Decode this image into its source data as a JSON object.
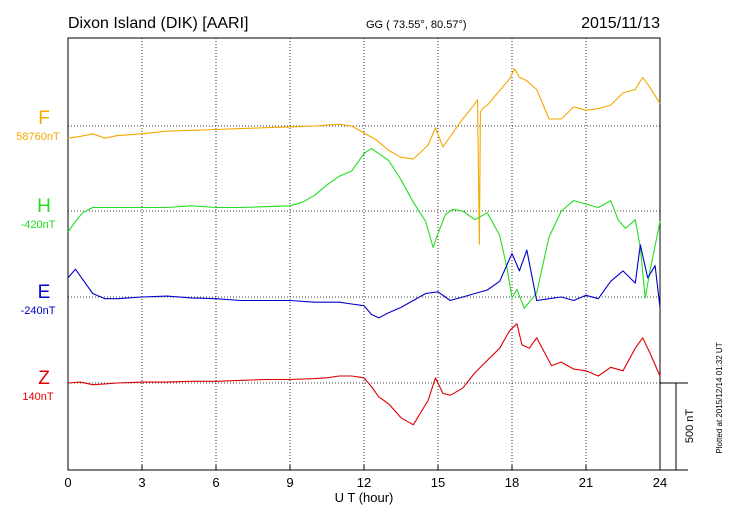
{
  "header": {
    "station": "Dixon Island (DIK)  [AARI]",
    "coords": "GG ( 73.55°,  80.57°)",
    "date": "2015/11/13"
  },
  "side_note": "Plotted at 2015/12/14 01:32 UT",
  "scale_label": "500 nT",
  "chart_data": {
    "type": "line",
    "xlabel": "U T (hour)",
    "xlim": [
      0,
      24
    ],
    "xticks": [
      "0",
      "3",
      "6",
      "9",
      "12",
      "15",
      "18",
      "21",
      "24"
    ],
    "scale_nT": 500,
    "series": [
      {
        "name": "F",
        "baseline_label": "58760nT",
        "color": "#f5a800",
        "baseline_nT": 58760,
        "x": [
          0,
          0.5,
          1,
          1.5,
          2,
          3,
          4,
          5,
          6,
          7,
          8,
          9,
          10,
          10.5,
          11,
          11.5,
          12,
          12.5,
          13,
          13.5,
          14,
          14.3,
          14.6,
          14.9,
          15.2,
          15.5,
          16,
          16.4,
          16.6,
          16.68,
          16.72,
          16.8,
          17,
          17.3,
          17.6,
          17.9,
          18.1,
          18.3,
          18.6,
          19,
          19.5,
          20,
          20.5,
          21,
          21.5,
          22,
          22.5,
          23,
          23.3,
          23.6,
          24
        ],
        "y": [
          -70,
          -60,
          -45,
          -70,
          -55,
          -45,
          -30,
          -25,
          -20,
          -15,
          -10,
          -5,
          0,
          5,
          10,
          0,
          -40,
          -80,
          -140,
          -180,
          -190,
          -150,
          -110,
          -10,
          -120,
          -60,
          40,
          110,
          150,
          -680,
          80,
          100,
          120,
          170,
          220,
          270,
          330,
          280,
          260,
          210,
          40,
          40,
          110,
          90,
          100,
          120,
          190,
          210,
          280,
          220,
          130
        ]
      },
      {
        "name": "H",
        "baseline_label": "-420nT",
        "color": "#22dd22",
        "baseline_nT": -420,
        "x": [
          0,
          0.3,
          0.6,
          1,
          2,
          3,
          4,
          5,
          6,
          7,
          8,
          9,
          9.5,
          10,
          10.5,
          11,
          11.5,
          12,
          12.3,
          12.6,
          13,
          13.5,
          14,
          14.5,
          14.8,
          15,
          15.3,
          15.6,
          16,
          16.5,
          17,
          17.5,
          17.8,
          18,
          18.2,
          18.5,
          19,
          19.5,
          20,
          20.5,
          21,
          21.5,
          22,
          22.3,
          22.6,
          23,
          23.2,
          23.4,
          23.6,
          23.8,
          24
        ],
        "y": [
          -120,
          -60,
          -10,
          20,
          20,
          20,
          20,
          30,
          20,
          20,
          25,
          30,
          50,
          90,
          150,
          200,
          230,
          330,
          360,
          330,
          290,
          180,
          50,
          -60,
          -210,
          -130,
          -20,
          10,
          0,
          -50,
          -10,
          -140,
          -330,
          -500,
          -450,
          -560,
          -470,
          -150,
          0,
          60,
          40,
          20,
          60,
          -50,
          -100,
          -50,
          -210,
          -500,
          -340,
          -200,
          -60
        ]
      },
      {
        "name": "E",
        "baseline_label": "-240nT",
        "color": "#0000cc",
        "baseline_nT": -240,
        "x": [
          0,
          0.3,
          0.6,
          1,
          1.5,
          2,
          3,
          4,
          5,
          6,
          7,
          8,
          9,
          10,
          11,
          11.5,
          12,
          12.3,
          12.6,
          13,
          13.5,
          14,
          14.5,
          15,
          15.5,
          16,
          16.5,
          17,
          17.5,
          18,
          18.3,
          18.6,
          19,
          19.5,
          20,
          20.5,
          21,
          21.5,
          22,
          22.5,
          23,
          23.2,
          23.5,
          23.8,
          24
        ],
        "y": [
          110,
          160,
          100,
          20,
          -10,
          -10,
          0,
          5,
          -5,
          -10,
          -20,
          -20,
          -20,
          -30,
          -30,
          -40,
          -50,
          -100,
          -120,
          -90,
          -60,
          -20,
          20,
          30,
          -20,
          0,
          20,
          40,
          90,
          250,
          150,
          270,
          -20,
          -10,
          0,
          -20,
          10,
          -10,
          90,
          150,
          80,
          300,
          110,
          180,
          -60
        ]
      },
      {
        "name": "Z",
        "baseline_label": "140nT",
        "color": "#dd0000",
        "baseline_nT": 140,
        "x": [
          0,
          0.5,
          1,
          1.5,
          2,
          3,
          4,
          5,
          6,
          7,
          8,
          9,
          10,
          10.5,
          11,
          11.5,
          12,
          12.3,
          12.6,
          13,
          13.5,
          14,
          14.3,
          14.6,
          14.9,
          15.2,
          15.5,
          16,
          16.5,
          17,
          17.5,
          17.9,
          18.2,
          18.4,
          18.7,
          19,
          19.3,
          19.6,
          20,
          20.5,
          21,
          21.5,
          22,
          22.5,
          23,
          23.3,
          23.6,
          24
        ],
        "y": [
          0,
          5,
          -10,
          -5,
          0,
          5,
          5,
          10,
          10,
          15,
          20,
          20,
          25,
          30,
          40,
          40,
          30,
          -20,
          -80,
          -120,
          -200,
          -240,
          -170,
          -100,
          30,
          -60,
          -70,
          -30,
          60,
          130,
          200,
          300,
          340,
          220,
          200,
          260,
          180,
          100,
          120,
          80,
          70,
          40,
          90,
          70,
          200,
          260,
          170,
          40
        ]
      }
    ]
  }
}
